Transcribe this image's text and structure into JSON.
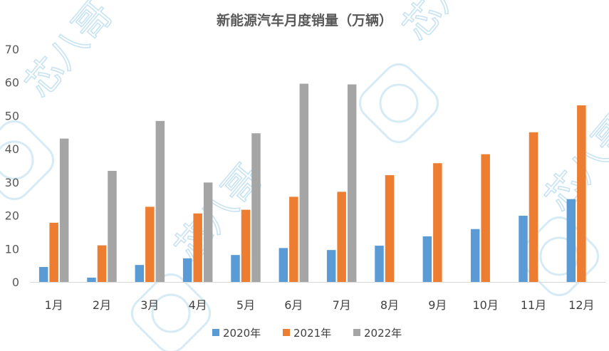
{
  "chart_data": {
    "type": "bar",
    "title": "新能源汽车月度销量（万辆）",
    "categories": [
      "1月",
      "2月",
      "3月",
      "4月",
      "5月",
      "6月",
      "7月",
      "8月",
      "9月",
      "10月",
      "11月",
      "12月"
    ],
    "series": [
      {
        "name": "2020年",
        "color": "#5b9bd5",
        "values": [
          4.5,
          1.3,
          5.1,
          7.1,
          8.1,
          10.2,
          9.6,
          10.9,
          13.7,
          15.9,
          19.9,
          24.9
        ]
      },
      {
        "name": "2021年",
        "color": "#ed7d31",
        "values": [
          17.8,
          11.0,
          22.6,
          20.6,
          21.7,
          25.6,
          27.1,
          32.1,
          35.7,
          38.4,
          45.0,
          53.1
        ]
      },
      {
        "name": "2022年",
        "color": "#a5a5a5",
        "values": [
          43.1,
          33.4,
          48.4,
          29.9,
          44.7,
          59.6,
          59.4,
          null,
          null,
          null,
          null,
          null
        ]
      }
    ],
    "yticks": [
      0,
      10,
      20,
      30,
      40,
      50,
      60,
      70
    ],
    "ylim": [
      0,
      70
    ],
    "legend": "bottom",
    "grid": false
  },
  "watermark": {
    "text": "芯八哥",
    "icon": "bird-logo-icon"
  }
}
